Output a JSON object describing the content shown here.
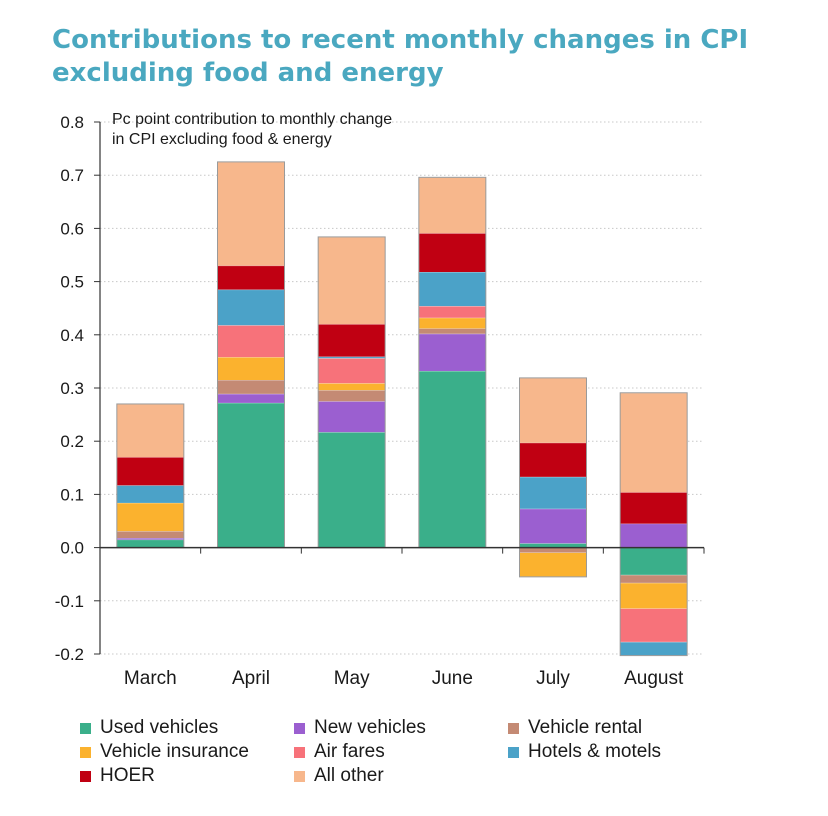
{
  "title": "Contributions to recent monthly changes in CPI excluding food and energy",
  "chart_data": {
    "type": "bar",
    "stacked": true,
    "ylabel": "Pc point contribution to monthly change in CPI excluding food & energy",
    "ylabel_lines": [
      "Pc point contribution to monthly change",
      "in CPI excluding food & energy"
    ],
    "xlabel": "",
    "ylim": [
      -0.2,
      0.8
    ],
    "yticks": [
      "0.8",
      "0.7",
      "0.6",
      "0.5",
      "0.4",
      "0.3",
      "0.2",
      "0.1",
      "0.0",
      "-0.1",
      "-0.2"
    ],
    "ytick_values": [
      0.8,
      0.7,
      0.6,
      0.5,
      0.4,
      0.3,
      0.2,
      0.1,
      0.0,
      -0.1,
      -0.2
    ],
    "grid": true,
    "legend_position": "bottom",
    "categories": [
      "March",
      "April",
      "May",
      "June",
      "July",
      "August"
    ],
    "series": [
      {
        "name": "Used vehicles",
        "color": "#3aaf8a",
        "values": [
          0.015,
          0.272,
          0.217,
          0.332,
          0.008,
          -0.052
        ]
      },
      {
        "name": "New vehicles",
        "color": "#9b5fd0",
        "values": [
          0.003,
          0.017,
          0.058,
          0.07,
          0.065,
          0.045
        ]
      },
      {
        "name": "Vehicle rental",
        "color": "#c48a74",
        "values": [
          0.013,
          0.026,
          0.021,
          0.01,
          -0.01,
          -0.015
        ]
      },
      {
        "name": "Vehicle insurance",
        "color": "#fbb22e",
        "values": [
          0.053,
          0.043,
          0.013,
          0.02,
          -0.045,
          -0.048
        ]
      },
      {
        "name": "Air fares",
        "color": "#f7727a",
        "values": [
          0.0,
          0.06,
          0.047,
          0.022,
          0.0,
          -0.063
        ]
      },
      {
        "name": "Hotels & motels",
        "color": "#4ba2c8",
        "values": [
          0.033,
          0.067,
          0.003,
          0.064,
          0.06,
          -0.025
        ]
      },
      {
        "name": "HOER",
        "color": "#c00012",
        "values": [
          0.053,
          0.045,
          0.061,
          0.073,
          0.064,
          0.059
        ]
      },
      {
        "name": "All other",
        "color": "#f7b78c",
        "values": [
          0.1,
          0.195,
          0.164,
          0.105,
          0.122,
          0.187
        ]
      }
    ]
  }
}
